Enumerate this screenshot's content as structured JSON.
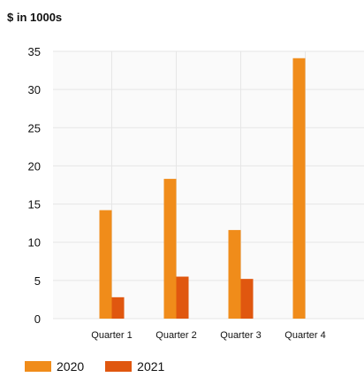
{
  "chart_data": {
    "type": "bar",
    "title": "$ in 1000s",
    "categories": [
      "Quarter 1",
      "Quarter 2",
      "Quarter 3",
      "Quarter 4"
    ],
    "series": [
      {
        "name": "2020",
        "values": [
          14.2,
          18.3,
          11.6,
          34.1
        ],
        "color": "#f08c1a"
      },
      {
        "name": "2021",
        "values": [
          2.8,
          5.5,
          5.2,
          0
        ],
        "color": "#e0570f"
      }
    ],
    "ylim": [
      0,
      35
    ],
    "yticks": [
      0,
      5,
      10,
      15,
      20,
      25,
      30,
      35
    ],
    "grid": true,
    "legend_position": "bottom-left"
  }
}
